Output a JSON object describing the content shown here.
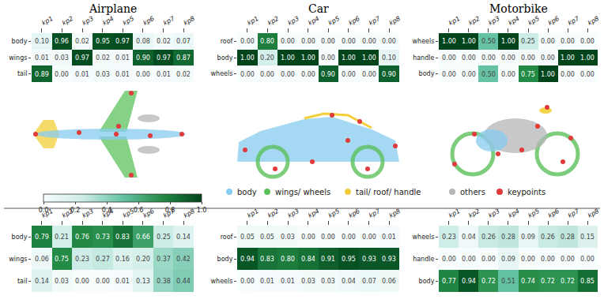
{
  "chart_data": [
    {
      "type": "heatmap",
      "title": "Airplane",
      "x": [
        "kp1",
        "kp2",
        "kp3",
        "kp4",
        "kp5",
        "kp6",
        "kp7",
        "kp8"
      ],
      "y": [
        "body",
        "wings",
        "tail"
      ],
      "zlim": [
        0,
        1
      ],
      "cells": [
        [
          0.1,
          0.96,
          0.02,
          0.95,
          0.97,
          0.08,
          0.02,
          0.07
        ],
        [
          0.01,
          0.03,
          0.97,
          0.02,
          0.01,
          0.9,
          0.97,
          0.87
        ],
        [
          0.89,
          0.0,
          0.01,
          0.03,
          0.01,
          0.0,
          0.01,
          0.02
        ]
      ],
      "cell_labels": [
        [
          "0.10",
          "0.96",
          "0.02",
          "0.95",
          "0.97",
          "0.08",
          "0.02",
          "0.07"
        ],
        [
          "0.01",
          "0.03",
          "0.97",
          "0.02",
          "0.01",
          "0.90",
          "0.97",
          "0.87"
        ],
        [
          "0.89",
          "0.00",
          "0.01",
          "0.03",
          "0.01",
          "0.00",
          "0.01",
          "0.02"
        ]
      ]
    },
    {
      "type": "heatmap",
      "title": "Car",
      "x": [
        "kp1",
        "kp2",
        "kp3",
        "kp4",
        "kp5",
        "kp6",
        "kp7",
        "kp8"
      ],
      "y": [
        "roof",
        "body",
        "wheels"
      ],
      "zlim": [
        0,
        1
      ],
      "cells": [
        [
          0.0,
          0.8,
          0.0,
          0.0,
          0.0,
          0.0,
          0.0,
          0.0
        ],
        [
          1.0,
          0.2,
          1.0,
          1.0,
          0.0,
          1.0,
          1.0,
          0.1
        ],
        [
          0.0,
          0.0,
          0.0,
          0.0,
          0.9,
          0.0,
          0.0,
          0.9
        ]
      ],
      "cell_labels": [
        [
          "0.00",
          "0.80",
          "0.00",
          "0.00",
          "0.00",
          "0.00",
          "0.00",
          "0.00"
        ],
        [
          "1.00",
          "0.20",
          "1.00",
          "1.00",
          "0.00",
          "1.00",
          "1.00",
          "0.10"
        ],
        [
          "0.00",
          "0.00",
          "0.00",
          "0.00",
          "0.90",
          "0.00",
          "0.00",
          "0.90"
        ]
      ]
    },
    {
      "type": "heatmap",
      "title": "Motorbike",
      "x": [
        "kp1",
        "kp2",
        "kp3",
        "kp4",
        "kp5",
        "kp6",
        "kp7",
        "kp8"
      ],
      "y": [
        "wheels",
        "handle",
        "body"
      ],
      "zlim": [
        0,
        1
      ],
      "cells": [
        [
          1.0,
          1.0,
          0.5,
          1.0,
          0.25,
          0.0,
          0.0,
          0.0
        ],
        [
          0.0,
          0.0,
          0.0,
          0.0,
          0.0,
          0.0,
          1.0,
          1.0
        ],
        [
          0.0,
          0.0,
          0.5,
          0.0,
          0.75,
          1.0,
          0.0,
          0.0
        ]
      ],
      "cell_labels": [
        [
          "1.00",
          "1.00",
          "0.50",
          "1.00",
          "0.25",
          "0.00",
          "0.00",
          "0.00"
        ],
        [
          "0.00",
          "0.00",
          "0.00",
          "0.00",
          "0.00",
          "0.00",
          "1.00",
          "1.00"
        ],
        [
          "0.00",
          "0.00",
          "0.50",
          "0.00",
          "0.75",
          "1.00",
          "0.00",
          "0.00"
        ]
      ]
    },
    {
      "type": "heatmap",
      "x": [
        "kp1",
        "kp2",
        "kp3",
        "kp4",
        "kp5",
        "kp6",
        "kp7",
        "kp8"
      ],
      "y": [
        "body",
        "wings",
        "tail"
      ],
      "zlim": [
        0,
        1
      ],
      "cells": [
        [
          0.79,
          0.21,
          0.76,
          0.73,
          0.83,
          0.66,
          0.25,
          0.14
        ],
        [
          0.06,
          0.75,
          0.23,
          0.27,
          0.16,
          0.2,
          0.37,
          0.42
        ],
        [
          0.14,
          0.03,
          0.0,
          0.0,
          0.01,
          0.13,
          0.38,
          0.44
        ]
      ],
      "cell_labels": [
        [
          "0.79",
          "0.21",
          "0.76",
          "0.73",
          "0.83",
          "0.66",
          "0.25",
          "0.14"
        ],
        [
          "0.06",
          "0.75",
          "0.23",
          "0.27",
          "0.16",
          "0.20",
          "0.37",
          "0.42"
        ],
        [
          "0.14",
          "0.03",
          "0.00",
          "0.00",
          "0.01",
          "0.13",
          "0.38",
          "0.44"
        ]
      ]
    },
    {
      "type": "heatmap",
      "x": [
        "kp1",
        "kp2",
        "kp3",
        "kp4",
        "kp5",
        "kp6",
        "kp7",
        "kp8"
      ],
      "y": [
        "roof",
        "body",
        "wheels"
      ],
      "zlim": [
        0,
        1
      ],
      "cells": [
        [
          0.05,
          0.05,
          0.03,
          0.0,
          0.0,
          0.0,
          0.0,
          0.01
        ],
        [
          0.94,
          0.83,
          0.8,
          0.84,
          0.91,
          0.95,
          0.93,
          0.93
        ],
        [
          0.0,
          0.01,
          0.01,
          0.03,
          0.03,
          0.04,
          0.07,
          0.06
        ]
      ],
      "cell_labels": [
        [
          "0.05",
          "0.05",
          "0.03",
          "0.00",
          "0.00",
          "0.00",
          "0.00",
          "0.01"
        ],
        [
          "0.94",
          "0.83",
          "0.80",
          "0.84",
          "0.91",
          "0.95",
          "0.93",
          "0.93"
        ],
        [
          "0.00",
          "0.01",
          "0.01",
          "0.03",
          "0.03",
          "0.04",
          "0.07",
          "0.06"
        ]
      ]
    },
    {
      "type": "heatmap",
      "x": [
        "kp1",
        "kp2",
        "kp3",
        "kp4",
        "kp5",
        "kp6",
        "kp7",
        "kp8"
      ],
      "y": [
        "wheels",
        "handle",
        "body"
      ],
      "zlim": [
        0,
        1
      ],
      "cells": [
        [
          0.23,
          0.04,
          0.26,
          0.28,
          0.09,
          0.26,
          0.28,
          0.15
        ],
        [
          0.0,
          0.0,
          0.0,
          0.09,
          0.0,
          0.0,
          0.0,
          0.0
        ],
        [
          0.77,
          0.94,
          0.72,
          0.51,
          0.74,
          0.72,
          0.72,
          0.85
        ]
      ],
      "cell_labels": [
        [
          "0.23",
          "0.04",
          "0.26",
          "0.28",
          "0.09",
          "0.26",
          "0.28",
          "0.15"
        ],
        [
          "0.00",
          "0.00",
          "0.00",
          "0.09",
          "0.00",
          "0.00",
          "0.00",
          "0.00"
        ],
        [
          "0.77",
          "0.94",
          "0.72",
          "0.51",
          "0.74",
          "0.72",
          "0.72",
          "0.85"
        ]
      ]
    }
  ],
  "colorbar": {
    "range": [
      0,
      1
    ],
    "ticks": [
      {
        "value": 0,
        "label": "0.0"
      },
      {
        "value": 0.2,
        "label": "0.2"
      },
      {
        "value": 0.4,
        "label": "0.4"
      },
      {
        "value": 0.6,
        "label": "0.6"
      },
      {
        "value": 0.8,
        "label": "0.8"
      },
      {
        "value": 1,
        "label": "1.0"
      }
    ]
  },
  "legend_items": [
    {
      "name": "body",
      "color": "#87cbef"
    },
    {
      "name": "wings/ wheels",
      "color": "#5cc15c"
    },
    {
      "name": "tail/ roof/ handle",
      "color": "#f2cf3a"
    },
    {
      "name": "others",
      "color": "#b5b5b5"
    },
    {
      "name": "keypoints",
      "color": "#e03a3a"
    }
  ]
}
